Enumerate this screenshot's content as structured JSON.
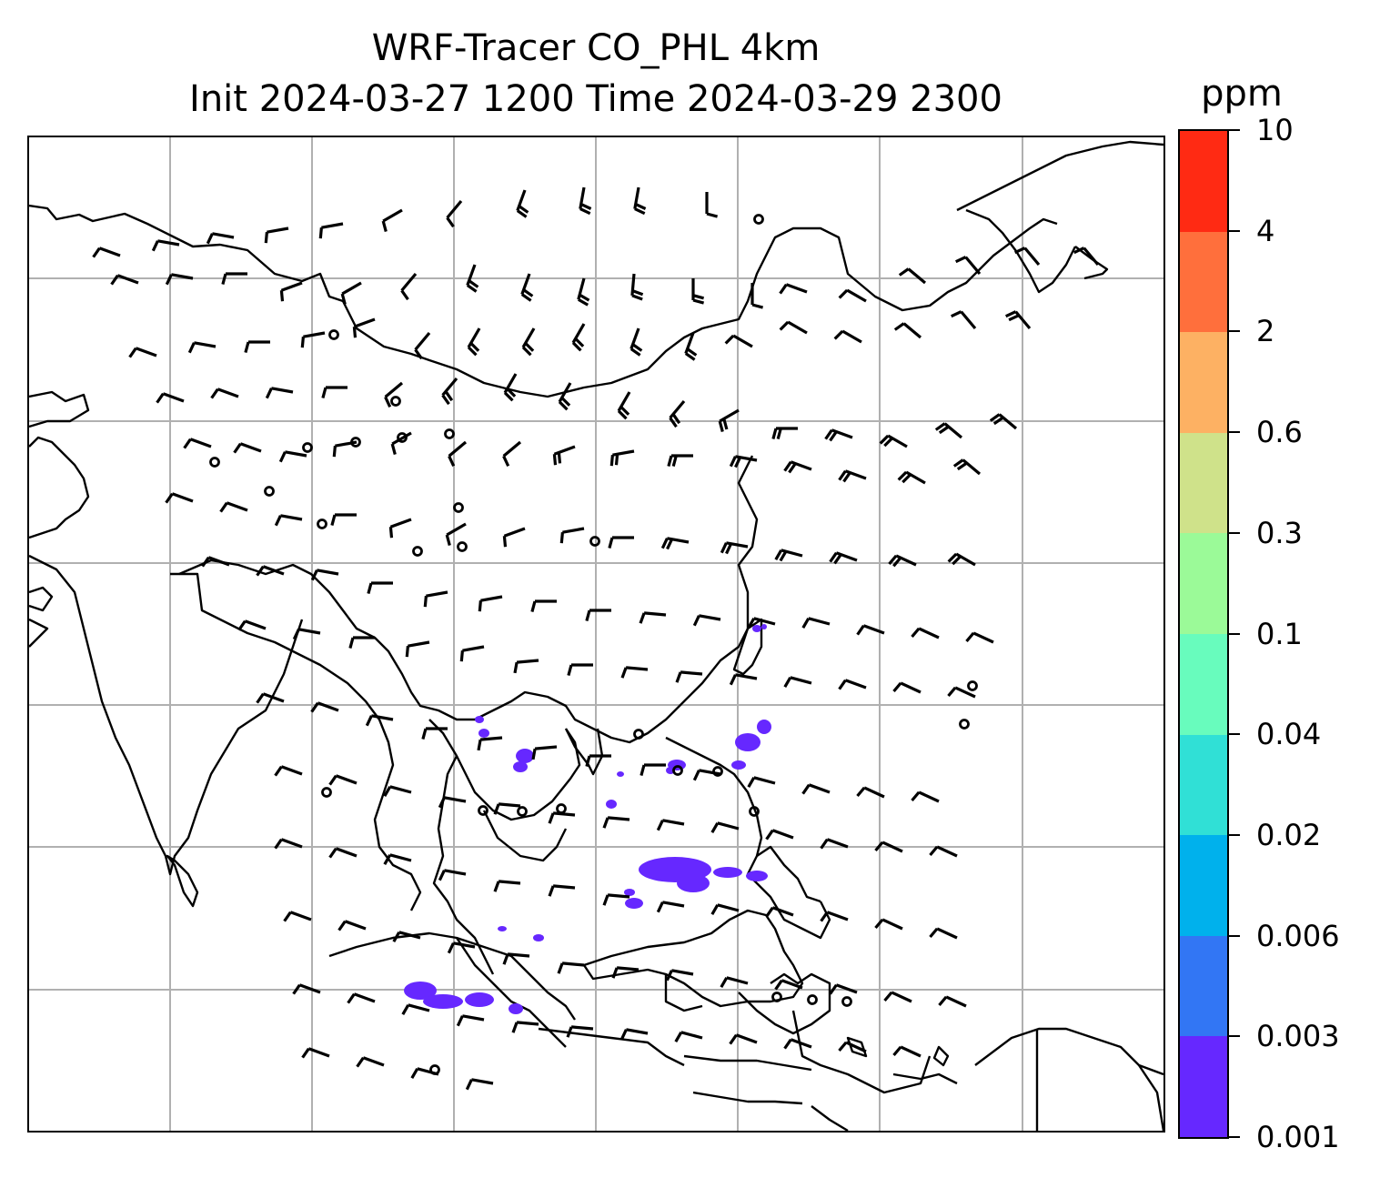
{
  "title_line1": "WRF-Tracer CO_PHL 4km",
  "title_line2": "Init 2024-03-27 1200 Time 2024-03-29 2300",
  "colorbar": {
    "unit": "ppm",
    "levels": [
      "0.001",
      "0.003",
      "0.006",
      "0.02",
      "0.04",
      "0.1",
      "0.3",
      "0.6",
      "2",
      "4",
      "10"
    ],
    "colors": [
      "#6628ff",
      "#3276f4",
      "#00b1ec",
      "#30e0d6",
      "#68fcbd",
      "#9bfa98",
      "#cfe28a",
      "#fdb163",
      "#ff6f3c",
      "#ff2a13"
    ]
  },
  "map": {
    "gridlines": true,
    "coastline_color": "#000000",
    "gridline_color": "#b0b0b0",
    "overlay": "wind barbs",
    "tracer_color": "#6628ff"
  }
}
